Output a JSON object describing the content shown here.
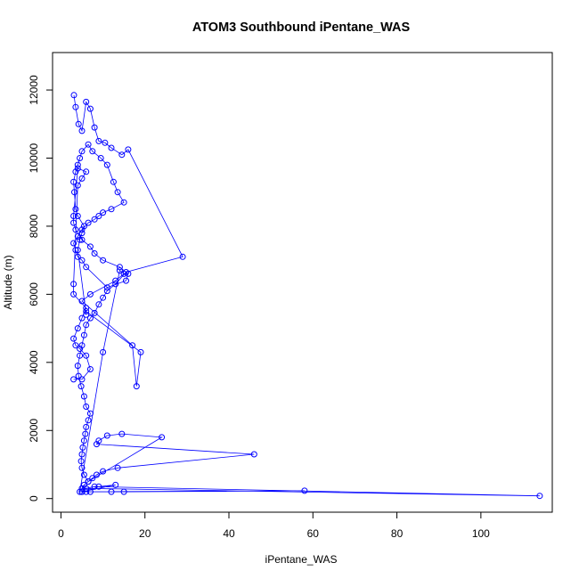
{
  "chart_data": {
    "type": "line",
    "title": "ATOM3 Southbound iPentane_WAS",
    "xlabel": "iPentane_WAS",
    "ylabel": "Altitude (m)",
    "xlim": [
      -2,
      117
    ],
    "ylim": [
      -400,
      13100
    ],
    "xticks": [
      0,
      20,
      40,
      60,
      80,
      100
    ],
    "xtick_labels": [
      "0",
      "20",
      "40",
      "60",
      "80",
      "100"
    ],
    "yticks": [
      0,
      2000,
      4000,
      6000,
      8000,
      10000,
      12000
    ],
    "ytick_labels": [
      "0",
      "2000",
      "4000",
      "6000",
      "8000",
      "10000",
      "12000"
    ],
    "grid": false,
    "legend": "none",
    "series_color": "#0000ff",
    "marker": "open-circle",
    "x": [
      3.1,
      3.5,
      4.2,
      5.0,
      6.0,
      7.0,
      8.0,
      9.0,
      10.5,
      12.0,
      14.5,
      16.0,
      29.0,
      15.5,
      13.0,
      11.0,
      10.0,
      9.0,
      8.0,
      7.0,
      6.0,
      5.5,
      5.0,
      4.5,
      4.0,
      4.2,
      4.8,
      5.5,
      6.0,
      7.0,
      6.5,
      6.0,
      5.8,
      5.5,
      5.2,
      5.0,
      4.8,
      5.0,
      5.5,
      6.5,
      24.0,
      14.5,
      11.0,
      9.0,
      8.5,
      46.0,
      13.5,
      10.0,
      8.5,
      7.5,
      6.5,
      5.5,
      5.0,
      114.0,
      8.0,
      6.0,
      5.0,
      58.0,
      15.0,
      12.0,
      7.0,
      5.0,
      13.0,
      9.0,
      6.0,
      4.5,
      10.0,
      14.0,
      15.0,
      13.0,
      7.0,
      5.0,
      17.0,
      18.0,
      19.0,
      6.0,
      6.0,
      4.0,
      4.5,
      5.0,
      5.5,
      4.0,
      3.5,
      3.2,
      3.0,
      3.5,
      4.0,
      4.5,
      5.0,
      6.5,
      7.5,
      9.5,
      11.0,
      12.5,
      13.5,
      15.0,
      12.0,
      10.0,
      9.0,
      8.0,
      6.5,
      5.0,
      4.0,
      3.0,
      3.5,
      4.0,
      5.0,
      6.0,
      11.0,
      15.5,
      16.0,
      14.0,
      10.0,
      8.0,
      7.0,
      5.0,
      3.5,
      3.0,
      3.0,
      4.0,
      6.0,
      5.0,
      4.0,
      3.0,
      3.0,
      6.0,
      5.0,
      4.0,
      3.0,
      3.5,
      4.5,
      6.0,
      7.0,
      5.0,
      3.0
    ],
    "y": [
      11850,
      11500,
      11000,
      10800,
      11650,
      11450,
      10900,
      10500,
      10450,
      10300,
      10100,
      10250,
      7100,
      6650,
      6300,
      6100,
      5900,
      5700,
      5450,
      5300,
      5100,
      4800,
      4500,
      4200,
      3900,
      3600,
      3300,
      3000,
      2700,
      2500,
      2300,
      2100,
      1900,
      1700,
      1500,
      1300,
      1100,
      900,
      700,
      500,
      1800,
      1900,
      1850,
      1700,
      1600,
      1300,
      900,
      800,
      700,
      600,
      500,
      400,
      300,
      80,
      350,
      300,
      200,
      230,
      200,
      200,
      200,
      200,
      400,
      350,
      200,
      200,
      4300,
      6700,
      6600,
      6400,
      6000,
      5800,
      4500,
      3300,
      4300,
      5500,
      5400,
      7300,
      7600,
      7800,
      8000,
      8300,
      8500,
      9000,
      9300,
      9600,
      9800,
      10000,
      10200,
      10400,
      10200,
      10000,
      9800,
      9300,
      9000,
      8700,
      8500,
      8400,
      8300,
      8200,
      8100,
      7900,
      7700,
      7500,
      7300,
      7100,
      7000,
      6800,
      6200,
      6400,
      6600,
      6800,
      7000,
      7200,
      7400,
      7600,
      7900,
      8100,
      8300,
      9700,
      9600,
      9400,
      9200,
      6300,
      6000,
      5600,
      5300,
      5000,
      4700,
      4500,
      4400,
      4200,
      3800,
      3500,
      3500
    ]
  }
}
